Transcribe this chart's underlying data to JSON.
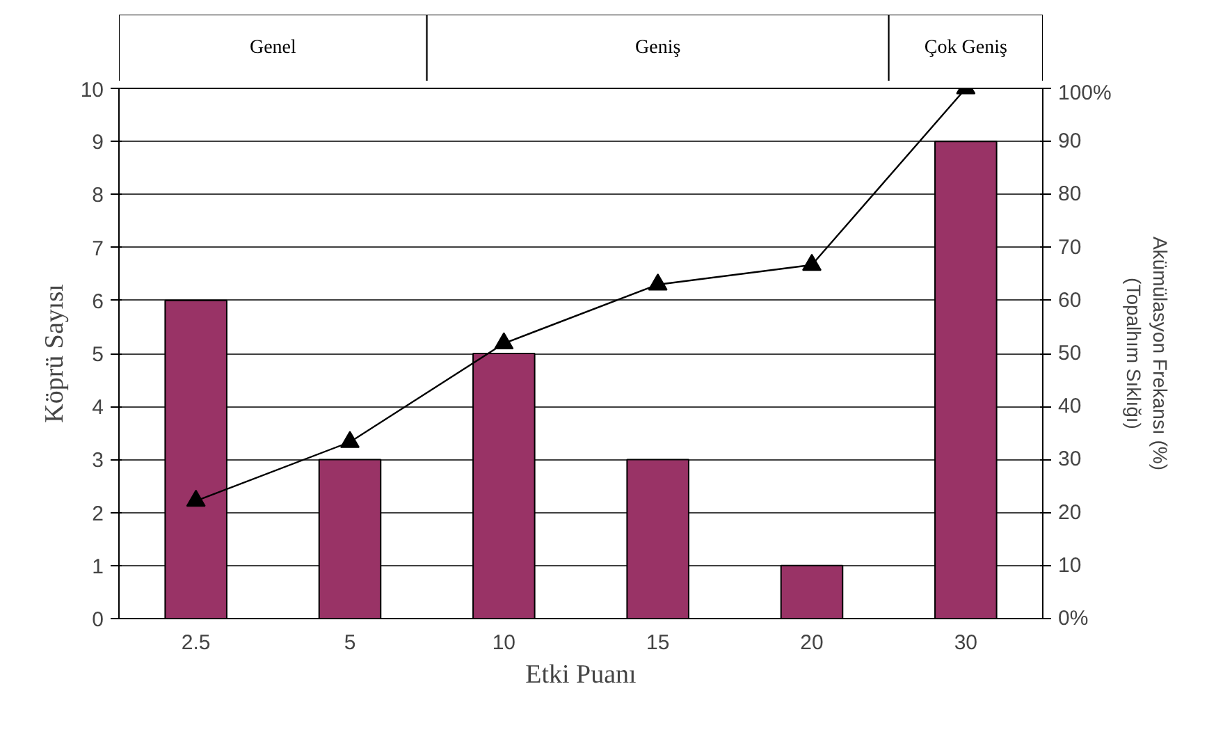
{
  "chart_data": {
    "type": "bar",
    "xlabel": "Etki Puanı",
    "ylabel": "Köprü Sayısı",
    "y2label": "Akümülasyon Frekansı (%)\n(Topalhım Sıklığı)",
    "categories": [
      "2.5",
      "5",
      "10",
      "15",
      "20",
      "30"
    ],
    "series": [
      {
        "color": "#993366",
        "values": [
          6,
          3,
          5,
          3,
          1,
          9
        ]
      },
      {
        "type": "line",
        "axis": "y2",
        "color": "#000000",
        "marker": "triangle",
        "values": [
          22.2,
          33.3,
          51.9,
          63.0,
          66.7,
          100
        ]
      }
    ],
    "ylim": [
      0,
      10
    ],
    "yticks": [
      0,
      1,
      2,
      3,
      4,
      5,
      6,
      7,
      8,
      9,
      10
    ],
    "y2lim": [
      0,
      100
    ],
    "y2ticks": [
      {
        "value": 0,
        "label": "0%"
      },
      10,
      20,
      30,
      40,
      50,
      60,
      70,
      80,
      90,
      {
        "value": 100,
        "label": "100%"
      }
    ],
    "annotations": [
      "Genel",
      "Geniş",
      "Çok Geniş"
    ],
    "grid": "y"
  }
}
